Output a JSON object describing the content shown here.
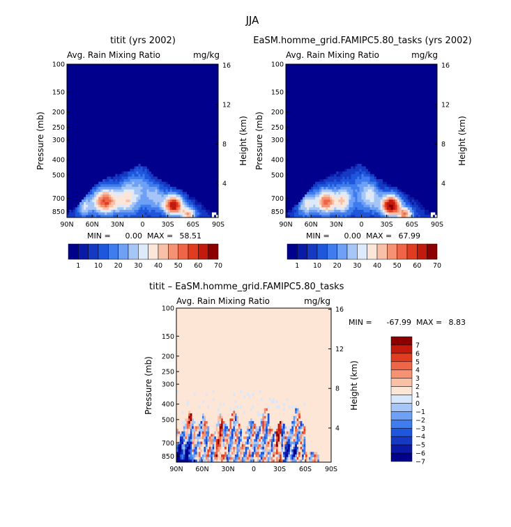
{
  "super_title": "JJA",
  "colors": {
    "cmap_abs": [
      "#00008c",
      "#0a1aa6",
      "#1639c4",
      "#1f57dc",
      "#3f7cee",
      "#6ea1f5",
      "#a7c6f8",
      "#ddeafc",
      "#fce6d9",
      "#f8c0a6",
      "#f49273",
      "#ee6547",
      "#df3c20",
      "#c21a0c",
      "#8c0000"
    ],
    "cmap_diff": [
      "#00008c",
      "#0a1aa6",
      "#1639c4",
      "#1f57dc",
      "#3f7cee",
      "#6ea1f5",
      "#a7c6f8",
      "#d8e7fb",
      "#fde6d5",
      "#f8c0a6",
      "#f49273",
      "#ee6547",
      "#df3c20",
      "#c21a0c",
      "#8c0000"
    ],
    "diff_background": "#fde6d5"
  },
  "chart_data": [
    {
      "id": "left",
      "type": "heatmap",
      "title": "titit (yrs 2002)",
      "left_string": "Avg. Rain Mixing Ratio",
      "right_string": "mg/kg",
      "ylabel": "Pressure (mb)",
      "y2label": "Height (km)",
      "x_ticks": [
        "90N",
        "60N",
        "30N",
        "0",
        "30S",
        "60S",
        "90S"
      ],
      "y_ticks": [
        100,
        150,
        200,
        250,
        300,
        400,
        500,
        700,
        850
      ],
      "y2_ticks": [
        16,
        12,
        8,
        4
      ],
      "ylim": [
        100,
        925
      ],
      "min_label": "MIN =",
      "min_value": "0.00",
      "max_label": "MAX =",
      "max_value": "58.51",
      "colorbar_labels": [
        "1",
        "10",
        "20",
        "30",
        "40",
        "50",
        "60",
        "70"
      ],
      "field_ceiling_mb": [
        840,
        820,
        770,
        700,
        640,
        580,
        545,
        525,
        510,
        495,
        480,
        470,
        445,
        430,
        445,
        490,
        520,
        540,
        565,
        600,
        610,
        640,
        680,
        705,
        760,
        830,
        870,
        920
      ],
      "blobs": [
        {
          "lat": 45,
          "p": 735,
          "amp": 48,
          "slat": 10,
          "sp": 95
        },
        {
          "lat": -37,
          "p": 775,
          "amp": 58,
          "slat": 8,
          "sp": 80
        },
        {
          "lat": -55,
          "p": 880,
          "amp": 35,
          "slat": 6,
          "sp": 60
        },
        {
          "lat": 20,
          "p": 720,
          "amp": 26,
          "slat": 9,
          "sp": 110
        },
        {
          "lat": 70,
          "p": 780,
          "amp": 22,
          "slat": 6,
          "sp": 90
        },
        {
          "lat": -15,
          "p": 690,
          "amp": 18,
          "slat": 8,
          "sp": 100
        },
        {
          "lat": 5,
          "p": 620,
          "amp": 14,
          "slat": 10,
          "sp": 140
        }
      ]
    },
    {
      "id": "right",
      "type": "heatmap",
      "title": "EaSM.homme_grid.FAMIPC5.80_tasks (yrs 2002)",
      "left_string": "Avg. Rain Mixing Ratio",
      "right_string": "mg/kg",
      "ylabel": "Pressure (mb)",
      "y2label": "Height (km)",
      "x_ticks": [
        "90N",
        "60N",
        "30N",
        "0",
        "30S",
        "60S",
        "90S"
      ],
      "y_ticks": [
        100,
        150,
        200,
        250,
        300,
        400,
        500,
        700,
        850
      ],
      "y2_ticks": [
        16,
        12,
        8,
        4
      ],
      "ylim": [
        100,
        925
      ],
      "min_label": "MIN =",
      "min_value": "0.00",
      "max_label": "MAX =",
      "max_value": "67.99",
      "colorbar_labels": [
        "1",
        "10",
        "20",
        "30",
        "40",
        "50",
        "60",
        "70"
      ],
      "field_ceiling_mb": [
        840,
        815,
        760,
        690,
        630,
        570,
        540,
        520,
        500,
        485,
        470,
        460,
        440,
        425,
        440,
        480,
        515,
        535,
        560,
        595,
        605,
        635,
        675,
        700,
        755,
        825,
        865,
        920
      ],
      "blobs": [
        {
          "lat": 42,
          "p": 740,
          "amp": 44,
          "slat": 8,
          "sp": 90
        },
        {
          "lat": -35,
          "p": 780,
          "amp": 66,
          "slat": 8,
          "sp": 80
        },
        {
          "lat": -52,
          "p": 885,
          "amp": 40,
          "slat": 6,
          "sp": 60
        },
        {
          "lat": 22,
          "p": 730,
          "amp": 30,
          "slat": 7,
          "sp": 100
        },
        {
          "lat": 65,
          "p": 760,
          "amp": 26,
          "slat": 8,
          "sp": 95
        },
        {
          "lat": -12,
          "p": 690,
          "amp": 20,
          "slat": 7,
          "sp": 100
        },
        {
          "lat": 0,
          "p": 640,
          "amp": 12,
          "slat": 10,
          "sp": 130
        }
      ]
    },
    {
      "id": "diff",
      "type": "heatmap",
      "title": "titit – EaSM.homme_grid.FAMIPC5.80_tasks",
      "left_string": "Avg. Rain Mixing Ratio",
      "right_string": "mg/kg",
      "ylabel": "Pressure (mb)",
      "y2label": "Height (km)",
      "x_ticks": [
        "90N",
        "60N",
        "30N",
        "0",
        "30S",
        "60S",
        "90S"
      ],
      "y_ticks": [
        100,
        150,
        200,
        250,
        300,
        400,
        500,
        700,
        850
      ],
      "y2_ticks": [
        16,
        12,
        8,
        4
      ],
      "ylim": [
        100,
        925
      ],
      "min_label": "MIN =",
      "min_value": "-67.99",
      "max_label": "MAX =",
      "max_value": "8.83",
      "colorbar_labels": [
        "7",
        "6",
        "5",
        "4",
        "3",
        "2",
        "1",
        "0",
        "−1",
        "−2",
        "−3",
        "−4",
        "−5",
        "−6",
        "−7"
      ],
      "colorbar_range": [
        -7,
        7
      ]
    }
  ]
}
